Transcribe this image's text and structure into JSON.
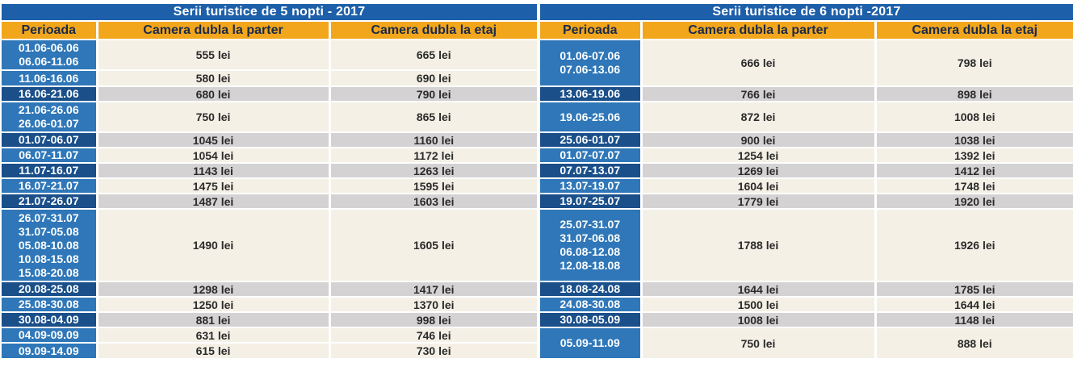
{
  "left": {
    "title": "Serii turistice de 5 nopti - 2017",
    "headers": [
      "Perioada",
      "Camera dubla la parter",
      "Camera dubla la etaj"
    ],
    "rows": [
      {
        "periods": [
          "01.06-06.06",
          "06.06-11.06"
        ],
        "parter": "555 lei",
        "etaj": "665 lei",
        "alt": false,
        "h": 38
      },
      {
        "periods": [
          "11.06-16.06"
        ],
        "parter": "580 lei",
        "etaj": "690 lei",
        "alt": false,
        "h": 20
      },
      {
        "periods": [
          "16.06-21.06"
        ],
        "parter": "680 lei",
        "etaj": "790 lei",
        "alt": true,
        "h": 19
      },
      {
        "periods": [
          "21.06-26.06",
          "26.06-01.07"
        ],
        "parter": "750 lei",
        "etaj": "865 lei",
        "alt": false,
        "h": 38
      },
      {
        "periods": [
          "01.07-06.07"
        ],
        "parter": "1045 lei",
        "etaj": "1160 lei",
        "alt": true,
        "h": 19
      },
      {
        "periods": [
          "06.07-11.07"
        ],
        "parter": "1054 lei",
        "etaj": "1172 lei",
        "alt": false,
        "h": 19
      },
      {
        "periods": [
          "11.07-16.07"
        ],
        "parter": "1143 lei",
        "etaj": "1263 lei",
        "alt": true,
        "h": 19
      },
      {
        "periods": [
          "16.07-21.07"
        ],
        "parter": "1475 lei",
        "etaj": "1595 lei",
        "alt": false,
        "h": 19
      },
      {
        "periods": [
          "21.07-26.07"
        ],
        "parter": "1487 lei",
        "etaj": "1603 lei",
        "alt": true,
        "h": 19
      },
      {
        "periods": [
          "26.07-31.07",
          "31.07-05.08",
          "05.08-10.08",
          "10.08-15.08",
          "15.08-20.08"
        ],
        "parter": "1490 lei",
        "etaj": "1605 lei",
        "alt": false,
        "h": 90
      },
      {
        "periods": [
          "20.08-25.08"
        ],
        "parter": "1298 lei",
        "etaj": "1417 lei",
        "alt": true,
        "h": 19
      },
      {
        "periods": [
          "25.08-30.08"
        ],
        "parter": "1250 lei",
        "etaj": "1370 lei",
        "alt": false,
        "h": 19
      },
      {
        "periods": [
          "30.08-04.09"
        ],
        "parter": "881 lei",
        "etaj": "998 lei",
        "alt": true,
        "h": 19
      },
      {
        "periods": [
          "04.09-09.09"
        ],
        "parter": "631 lei",
        "etaj": "746 lei",
        "alt": false,
        "h": 19
      },
      {
        "periods": [
          "09.09-14.09"
        ],
        "parter": "615 lei",
        "etaj": "730 lei",
        "alt": false,
        "h": 19
      }
    ]
  },
  "right": {
    "title": "Serii turistice de 6 nopti -2017",
    "headers": [
      "Perioada",
      "Camera dubla la parter",
      "Camera dubla la etaj"
    ],
    "rows": [
      {
        "periods": [
          "01.06-07.06",
          "07.06-13.06"
        ],
        "parter": "666 lei",
        "etaj": "798 lei",
        "alt": false,
        "h": 58
      },
      {
        "periods": [
          "13.06-19.06"
        ],
        "parter": "766 lei",
        "etaj": "898 lei",
        "alt": true,
        "h": 19
      },
      {
        "periods": [
          "19.06-25.06"
        ],
        "parter": "872 lei",
        "etaj": "1008 lei",
        "alt": false,
        "h": 38
      },
      {
        "periods": [
          "25.06-01.07"
        ],
        "parter": "900 lei",
        "etaj": "1038 lei",
        "alt": true,
        "h": 19
      },
      {
        "periods": [
          "01.07-07.07"
        ],
        "parter": "1254 lei",
        "etaj": "1392 lei",
        "alt": false,
        "h": 19
      },
      {
        "periods": [
          "07.07-13.07"
        ],
        "parter": "1269 lei",
        "etaj": "1412 lei",
        "alt": true,
        "h": 19
      },
      {
        "periods": [
          "13.07-19.07"
        ],
        "parter": "1604 lei",
        "etaj": "1748 lei",
        "alt": false,
        "h": 19
      },
      {
        "periods": [
          "19.07-25.07"
        ],
        "parter": "1779 lei",
        "etaj": "1920 lei",
        "alt": true,
        "h": 19
      },
      {
        "periods": [
          "25.07-31.07",
          "31.07-06.08",
          "06.08-12.08",
          "12.08-18.08"
        ],
        "parter": "1788 lei",
        "etaj": "1926 lei",
        "alt": false,
        "h": 90
      },
      {
        "periods": [
          "18.08-24.08"
        ],
        "parter": "1644 lei",
        "etaj": "1785 lei",
        "alt": true,
        "h": 19
      },
      {
        "periods": [
          "24.08-30.08"
        ],
        "parter": "1500 lei",
        "etaj": "1644 lei",
        "alt": false,
        "h": 19
      },
      {
        "periods": [
          "30.08-05.09"
        ],
        "parter": "1008 lei",
        "etaj": "1148 lei",
        "alt": true,
        "h": 19
      },
      {
        "periods": [
          "05.09-11.09"
        ],
        "parter": "750 lei",
        "etaj": "888 lei",
        "alt": false,
        "h": 38
      }
    ]
  },
  "colors": {
    "title_bg": "#1d5fa8",
    "header_bg": "#f2a61c",
    "period_bg": "#2f77b8",
    "row_bg": "#f5f0e6",
    "row_alt_bg": "#d5d2d3"
  }
}
